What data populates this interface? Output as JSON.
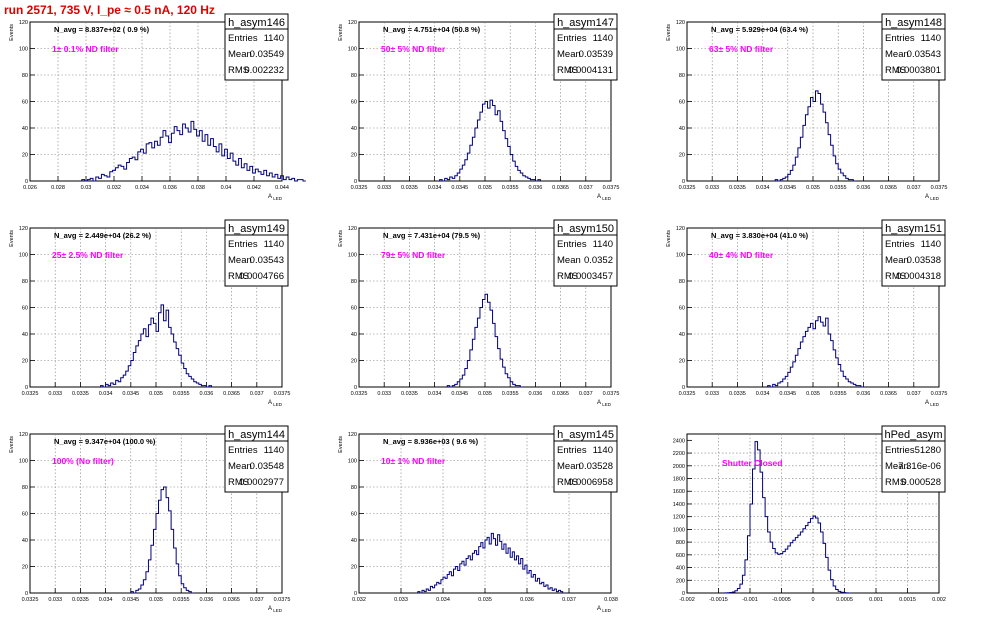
{
  "run_title": "run 2571,   735 V, I_pe ≈ 0.5 nA, 120 Hz",
  "colors": {
    "title": "#e00000",
    "hist_line": "#00007f",
    "label_magenta": "#ff00ff",
    "grid": "#7f7f7f"
  },
  "chart_data": [
    {
      "type": "histogram",
      "name": "h_asym146",
      "navg": "N_avg = 8.837e+02 ( 0.9 %)",
      "filter": "1± 0.1% ND filter",
      "stats": {
        "entries": "1140",
        "mean": "0.03549",
        "rms": "0.002232"
      },
      "xlabel": "A_LED",
      "ylabel": "Events",
      "xlim": [
        0.026,
        0.044
      ],
      "ylim": [
        0,
        120
      ],
      "xticks": [
        "0.026",
        "0.028",
        "0.03",
        "0.032",
        "0.034",
        "0.036",
        "0.038",
        "0.04",
        "0.042",
        "0.044"
      ],
      "yticks": [
        "0",
        "20",
        "40",
        "60",
        "80",
        "100",
        "120"
      ],
      "bins": {
        "x0": 0.0297,
        "width": 0.0002,
        "counts": [
          1,
          0,
          1,
          2,
          0,
          3,
          2,
          5,
          4,
          3,
          7,
          8,
          10,
          12,
          11,
          9,
          14,
          17,
          18,
          16,
          22,
          24,
          21,
          28,
          29,
          25,
          30,
          27,
          33,
          38,
          34,
          29,
          36,
          41,
          38,
          35,
          43,
          40,
          37,
          45,
          39,
          34,
          38,
          30,
          35,
          27,
          32,
          26,
          22,
          28,
          19,
          24,
          17,
          21,
          15,
          12,
          17,
          10,
          13,
          8,
          11,
          6,
          9,
          7,
          5,
          8,
          4,
          6,
          3,
          5,
          2,
          4,
          1,
          3,
          1,
          2,
          0,
          1,
          1,
          0
        ]
      }
    },
    {
      "type": "histogram",
      "name": "h_asym147",
      "navg": "N_avg = 4.751e+04 (50.8 %)",
      "filter": "50± 5% ND filter",
      "stats": {
        "entries": "1140",
        "mean": "0.03539",
        "rms": "0.0004131"
      },
      "xlabel": "A_LED",
      "ylabel": "Events",
      "xlim": [
        0.0325,
        0.0375
      ],
      "ylim": [
        0,
        120
      ],
      "xticks": [
        "0.0325",
        "0.033",
        "0.0335",
        "0.034",
        "0.0345",
        "0.035",
        "0.0355",
        "0.036",
        "0.0365",
        "0.037",
        "0.0375"
      ],
      "yticks": [
        "0",
        "20",
        "40",
        "60",
        "80",
        "100",
        "120"
      ],
      "bins": {
        "x0": 0.0341,
        "width": 5e-05,
        "counts": [
          1,
          0,
          2,
          1,
          3,
          2,
          4,
          6,
          9,
          12,
          16,
          21,
          27,
          33,
          40,
          46,
          52,
          58,
          60,
          55,
          61,
          57,
          50,
          53,
          45,
          38,
          32,
          26,
          20,
          15,
          11,
          8,
          6,
          4,
          3,
          2,
          1,
          1,
          0,
          1
        ]
      }
    },
    {
      "type": "histogram",
      "name": "h_asym148",
      "navg": "N_avg = 5.929e+04 (63.4 %)",
      "filter": "63± 5% ND filter",
      "stats": {
        "entries": "1140",
        "mean": "0.03543",
        "rms": "0.0003801"
      },
      "xlabel": "A_LED",
      "ylabel": "Events",
      "xlim": [
        0.0325,
        0.0375
      ],
      "ylim": [
        0,
        120
      ],
      "xticks": [
        "0.0325",
        "0.033",
        "0.0335",
        "0.034",
        "0.0345",
        "0.035",
        "0.0355",
        "0.036",
        "0.0365",
        "0.037",
        "0.0375"
      ],
      "yticks": [
        "0",
        "20",
        "40",
        "60",
        "80",
        "100",
        "120"
      ],
      "bins": {
        "x0": 0.03425,
        "width": 5e-05,
        "counts": [
          1,
          0,
          1,
          2,
          3,
          5,
          8,
          12,
          18,
          25,
          33,
          42,
          50,
          56,
          63,
          60,
          68,
          66,
          58,
          52,
          44,
          35,
          27,
          19,
          13,
          9,
          6,
          4,
          2,
          1,
          1,
          0
        ]
      }
    },
    {
      "type": "histogram",
      "name": "h_asym149",
      "navg": "N_avg = 2.449e+04 (26.2 %)",
      "filter": "25± 2.5% ND filter",
      "stats": {
        "entries": "1140",
        "mean": "0.03543",
        "rms": "0.0004766"
      },
      "xlabel": "A_LED",
      "ylabel": "Events",
      "xlim": [
        0.0325,
        0.0375
      ],
      "ylim": [
        0,
        120
      ],
      "xticks": [
        "0.0325",
        "0.033",
        "0.0335",
        "0.034",
        "0.0345",
        "0.035",
        "0.0355",
        "0.036",
        "0.0365",
        "0.037",
        "0.0375"
      ],
      "yticks": [
        "0",
        "20",
        "40",
        "60",
        "80",
        "100",
        "120"
      ],
      "bins": {
        "x0": 0.0339,
        "width": 5e-05,
        "counts": [
          1,
          0,
          2,
          1,
          3,
          2,
          5,
          4,
          7,
          9,
          12,
          16,
          20,
          26,
          31,
          35,
          40,
          44,
          38,
          47,
          52,
          48,
          42,
          56,
          62,
          50,
          58,
          45,
          40,
          34,
          29,
          24,
          18,
          14,
          10,
          8,
          6,
          4,
          3,
          2,
          1,
          1,
          0,
          1
        ]
      }
    },
    {
      "type": "histogram",
      "name": "h_asym150",
      "navg": "N_avg = 7.431e+04 (79.5 %)",
      "filter": "79± 5% ND filter",
      "stats": {
        "entries": "1140",
        "mean": "0.0352",
        "rms": "0.0003457"
      },
      "xlabel": "A_LED",
      "ylabel": "Events",
      "xlim": [
        0.0325,
        0.0375
      ],
      "ylim": [
        0,
        120
      ],
      "xticks": [
        "0.0325",
        "0.033",
        "0.0335",
        "0.034",
        "0.0345",
        "0.035",
        "0.0355",
        "0.036",
        "0.0365",
        "0.037",
        "0.0375"
      ],
      "yticks": [
        "0",
        "20",
        "40",
        "60",
        "80",
        "100",
        "120"
      ],
      "bins": {
        "x0": 0.03425,
        "width": 5e-05,
        "counts": [
          1,
          0,
          1,
          2,
          4,
          6,
          9,
          14,
          20,
          28,
          36,
          45,
          52,
          60,
          66,
          70,
          64,
          58,
          48,
          38,
          29,
          21,
          15,
          10,
          7,
          4,
          2,
          1,
          1,
          0
        ]
      }
    },
    {
      "type": "histogram",
      "name": "h_asym151",
      "navg": "N_avg = 3.830e+04 (41.0 %)",
      "filter": "40± 4% ND filter",
      "stats": {
        "entries": "1140",
        "mean": "0.03538",
        "rms": "0.0004318"
      },
      "xlabel": "A_LED",
      "ylabel": "Events",
      "xlim": [
        0.0325,
        0.0375
      ],
      "ylim": [
        0,
        120
      ],
      "xticks": [
        "0.0325",
        "0.033",
        "0.0335",
        "0.034",
        "0.0345",
        "0.035",
        "0.0355",
        "0.036",
        "0.0365",
        "0.037",
        "0.0375"
      ],
      "yticks": [
        "0",
        "20",
        "40",
        "60",
        "80",
        "100",
        "120"
      ],
      "bins": {
        "x0": 0.0341,
        "width": 5e-05,
        "counts": [
          1,
          0,
          2,
          1,
          3,
          4,
          6,
          8,
          11,
          15,
          19,
          24,
          29,
          34,
          38,
          42,
          45,
          48,
          44,
          50,
          53,
          49,
          46,
          52,
          40,
          35,
          28,
          22,
          17,
          12,
          8,
          6,
          4,
          3,
          2,
          1,
          1,
          0
        ]
      }
    },
    {
      "type": "histogram",
      "name": "h_asym144",
      "navg": "N_avg = 9.347e+04 (100.0 %)",
      "filter": "100% (No filter)",
      "stats": {
        "entries": "1140",
        "mean": "0.03548",
        "rms": "0.0002977"
      },
      "xlabel": "A_LED",
      "ylabel": "Events",
      "xlim": [
        0.0325,
        0.0375
      ],
      "ylim": [
        0,
        120
      ],
      "xticks": [
        "0.0325",
        "0.033",
        "0.0335",
        "0.034",
        "0.0345",
        "0.035",
        "0.0355",
        "0.036",
        "0.0365",
        "0.037",
        "0.0375"
      ],
      "yticks": [
        "0",
        "20",
        "40",
        "60",
        "80",
        "100",
        "120"
      ],
      "bins": {
        "x0": 0.0345,
        "width": 5e-05,
        "counts": [
          1,
          0,
          2,
          3,
          6,
          10,
          16,
          25,
          36,
          48,
          60,
          70,
          78,
          80,
          72,
          62,
          48,
          34,
          22,
          13,
          7,
          4,
          2,
          1,
          0
        ]
      }
    },
    {
      "type": "histogram",
      "name": "h_asym145",
      "navg": "N_avg = 8.936e+03 ( 9.6 %)",
      "filter": "10± 1% ND filter",
      "stats": {
        "entries": "1140",
        "mean": "0.03528",
        "rms": "0.0006958"
      },
      "xlabel": "A_LED",
      "ylabel": "Events",
      "xlim": [
        0.032,
        0.038
      ],
      "ylim": [
        0,
        120
      ],
      "xticks": [
        "0.032",
        "0.033",
        "0.034",
        "0.035",
        "0.036",
        "0.037",
        "0.038"
      ],
      "yticks": [
        "0",
        "20",
        "40",
        "60",
        "80",
        "100",
        "120"
      ],
      "bins": {
        "x0": 0.0334,
        "width": 5e-05,
        "counts": [
          1,
          0,
          2,
          1,
          3,
          2,
          5,
          4,
          6,
          8,
          7,
          10,
          12,
          11,
          14,
          16,
          13,
          18,
          20,
          17,
          22,
          24,
          21,
          26,
          28,
          25,
          30,
          32,
          29,
          35,
          38,
          34,
          40,
          42,
          37,
          45,
          41,
          36,
          44,
          39,
          33,
          37,
          30,
          34,
          27,
          31,
          25,
          28,
          22,
          26,
          18,
          21,
          15,
          17,
          12,
          14,
          9,
          11,
          7,
          8,
          5,
          6,
          3,
          4,
          2,
          3,
          1,
          2,
          1,
          0
        ]
      }
    },
    {
      "type": "histogram",
      "name": "hPed_asym",
      "navg": "",
      "filter": "Shutter Closed",
      "stats": {
        "entries": "51280",
        "mean": "-7.316e-06",
        "rms": "0.000528"
      },
      "xlabel": "",
      "ylabel": "",
      "xlim": [
        -0.002,
        0.002
      ],
      "ylim": [
        0,
        2500
      ],
      "xticks": [
        "-0.002",
        "-0.0015",
        "-0.001",
        "-0.0005",
        "0",
        "0.0005",
        "0.001",
        "0.0015",
        "0.002"
      ],
      "yticks": [
        "0",
        "200",
        "400",
        "600",
        "800",
        "1000",
        "1200",
        "1400",
        "1600",
        "1800",
        "2000",
        "2200",
        "2400"
      ],
      "bins": {
        "x0": -0.0014,
        "width": 4e-05,
        "counts": [
          2,
          4,
          8,
          16,
          35,
          70,
          140,
          280,
          520,
          900,
          1400,
          1950,
          2380,
          2250,
          1900,
          1500,
          1200,
          960,
          800,
          700,
          630,
          610,
          620,
          650,
          690,
          740,
          790,
          830,
          870,
          910,
          960,
          1010,
          1060,
          1110,
          1170,
          1210,
          1180,
          1100,
          960,
          780,
          560,
          360,
          210,
          110,
          55,
          25,
          12,
          5,
          2,
          1
        ]
      }
    }
  ]
}
